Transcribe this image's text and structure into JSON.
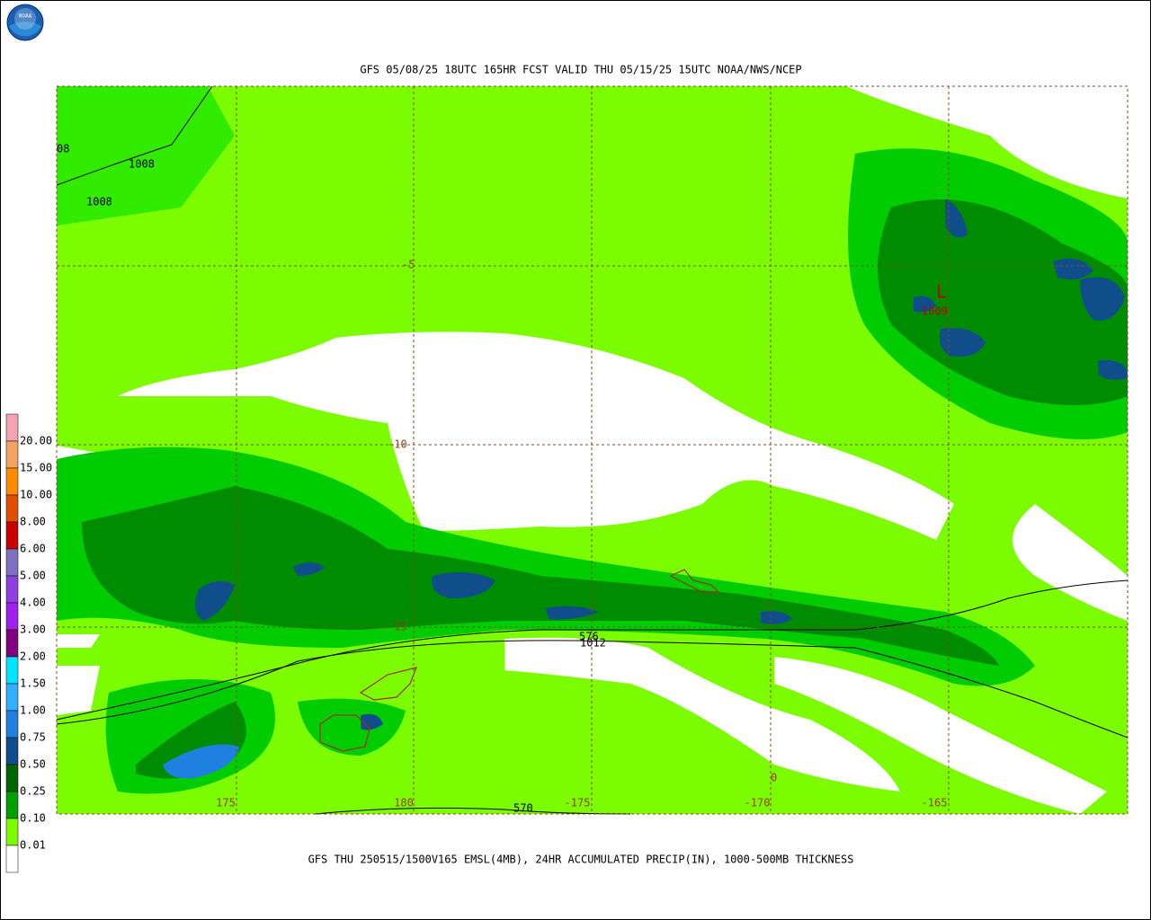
{
  "header": {
    "logo": "NOAA",
    "title": "GFS 05/08/25 18UTC 165HR FCST VALID THU 05/15/25 15UTC NOAA/NWS/NCEP"
  },
  "footer": {
    "caption": "GFS THU 250515/1500V165 EMSL(4MB), 24HR ACCUMULATED PRECIP(IN), 1000-500MB THICKNESS"
  },
  "legend": {
    "labels": [
      "20.00",
      "15.00",
      "10.00",
      "8.00",
      "6.00",
      "5.00",
      "4.00",
      "3.00",
      "2.00",
      "1.50",
      "1.00",
      "0.75",
      "0.50",
      "0.25",
      "0.10",
      "0.01"
    ]
  },
  "map": {
    "lat_labels": [
      "-5",
      "-10",
      "-15"
    ],
    "lon_labels": [
      "175",
      "180",
      "-175",
      "-170",
      "-165"
    ],
    "contour_labels": [
      "08",
      "1008",
      "1008",
      "1009",
      "L",
      "576",
      "1012",
      "570",
      "0"
    ]
  }
}
